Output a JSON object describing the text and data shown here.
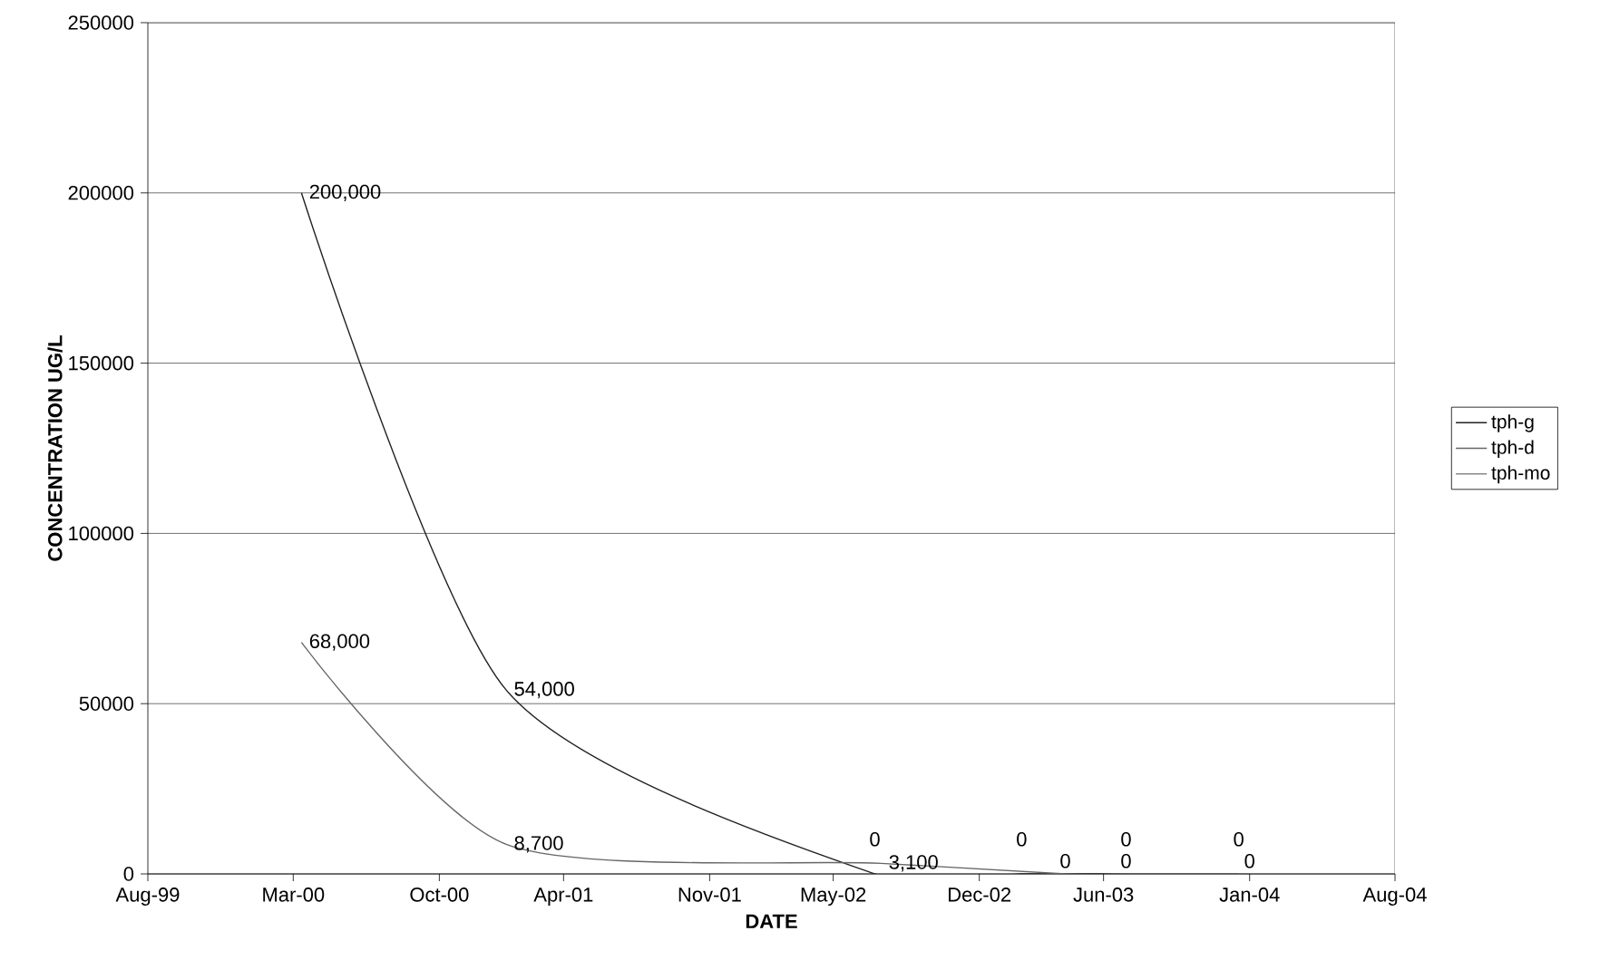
{
  "chart_data": {
    "type": "line",
    "xlabel": "DATE",
    "ylabel": "CONCENTRATION UG/L",
    "xlim": [
      "1999-08",
      "2004-08"
    ],
    "xticks": [
      {
        "value": "1999-08",
        "label": "Aug-99"
      },
      {
        "value": "2000-03",
        "label": "Mar-00"
      },
      {
        "value": "2000-10",
        "label": "Oct-00"
      },
      {
        "value": "2001-04",
        "label": "Apr-01"
      },
      {
        "value": "2001-11",
        "label": "Nov-01"
      },
      {
        "value": "2002-05",
        "label": "May-02"
      },
      {
        "value": "2002-12",
        "label": "Dec-02"
      },
      {
        "value": "2003-06",
        "label": "Jun-03"
      },
      {
        "value": "2004-01",
        "label": "Jan-04"
      },
      {
        "value": "2004-08",
        "label": "Aug-04"
      }
    ],
    "ylim": [
      0,
      250000
    ],
    "yticks": [
      0,
      50000,
      100000,
      150000,
      200000,
      250000
    ],
    "grid": "y",
    "legend": "right",
    "line_style": "solid",
    "series": [
      {
        "name": "tph-g",
        "color": "#222222",
        "x": [
          "2000-03-13",
          "2001-01-07",
          "2002-07-01",
          "2003-02-01",
          "2003-07-04",
          "2003-12-16"
        ],
        "values": [
          200000,
          54000,
          0,
          0,
          0,
          0
        ],
        "value_labels": [
          "200,000",
          "54,000",
          "0",
          "0",
          "0",
          "0"
        ]
      },
      {
        "name": "tph-d",
        "color": "#666666",
        "x": [
          "2000-03-13",
          "2001-01-07",
          "2002-07-10",
          "2003-04-06",
          "2003-07-04",
          "2004-01-01"
        ],
        "values": [
          68000,
          8700,
          3100,
          0,
          0,
          0
        ],
        "value_labels": [
          "68,000",
          "8,700",
          "3,100",
          "0",
          "0",
          "0"
        ]
      },
      {
        "name": "tph-mo",
        "color": "#888888"
      }
    ]
  }
}
